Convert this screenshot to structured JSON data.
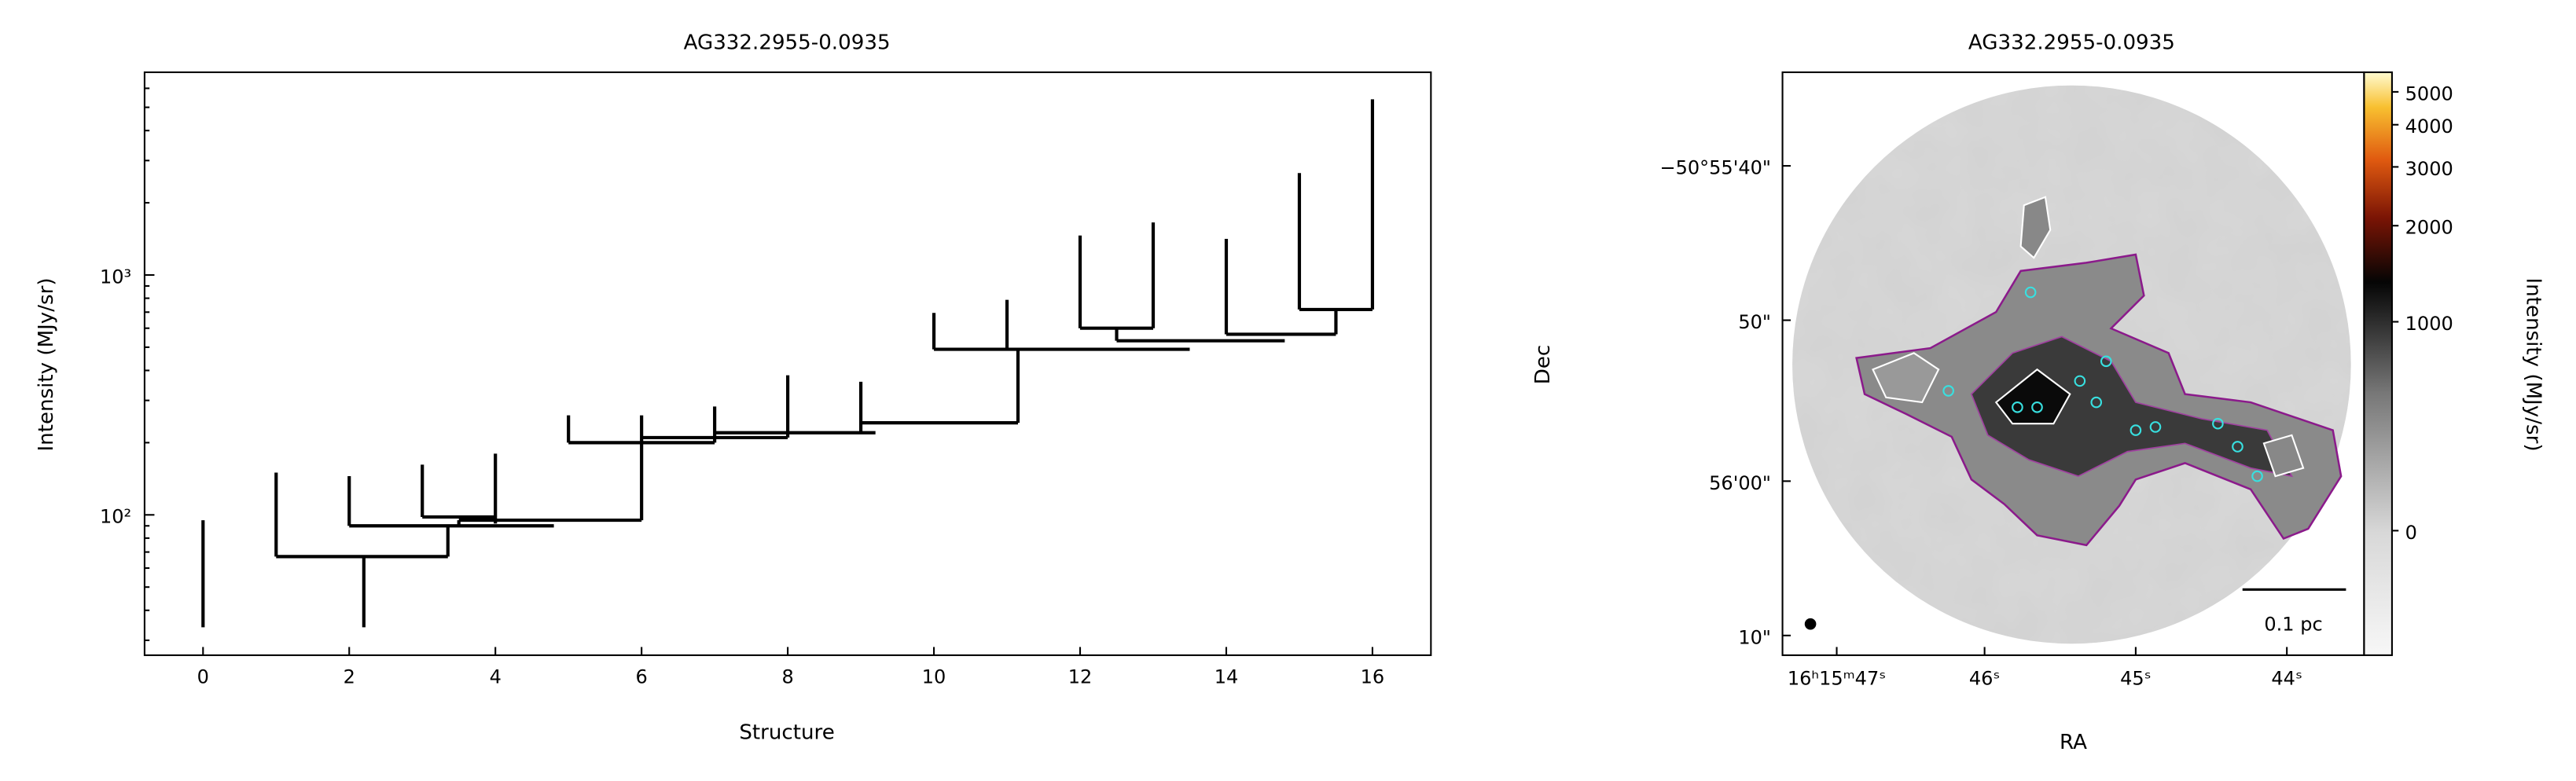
{
  "chart_data": [
    {
      "type": "dendrogram",
      "title": "AG332.2955-0.0935",
      "xlabel": "Structure",
      "ylabel": "Intensity (MJy/sr)",
      "xlim": [
        -0.8,
        16.8
      ],
      "xticks": [
        0,
        2,
        4,
        6,
        8,
        10,
        12,
        14,
        16
      ],
      "ylim": [
        26,
        7000
      ],
      "yscale": "log",
      "yticks": [
        {
          "value": 100,
          "label": "10²"
        },
        {
          "value": 1000,
          "label": "10³"
        }
      ],
      "color": "#000000",
      "segments": [
        {
          "x": [
            0,
            0
          ],
          "y": [
            34,
            95
          ]
        },
        {
          "x": [
            1,
            1
          ],
          "y": [
            67,
            150
          ]
        },
        {
          "x": [
            2.2,
            2.2
          ],
          "y": [
            34,
            67
          ]
        },
        {
          "x": [
            1,
            3.35
          ],
          "y": [
            67,
            67
          ]
        },
        {
          "x": [
            2,
            2
          ],
          "y": [
            90,
            145
          ]
        },
        {
          "x": [
            3.35,
            3.35
          ],
          "y": [
            67,
            90
          ]
        },
        {
          "x": [
            2,
            4.8
          ],
          "y": [
            90,
            90
          ]
        },
        {
          "x": [
            3,
            3
          ],
          "y": [
            98,
            162
          ]
        },
        {
          "x": [
            4,
            4
          ],
          "y": [
            92,
            180
          ]
        },
        {
          "x": [
            3,
            4
          ],
          "y": [
            98,
            98
          ]
        },
        {
          "x": [
            3.5,
            3.5
          ],
          "y": [
            90,
            95
          ]
        },
        {
          "x": [
            3.5,
            6
          ],
          "y": [
            95,
            95
          ]
        },
        {
          "x": [
            5,
            5
          ],
          "y": [
            200,
            260
          ]
        },
        {
          "x": [
            6,
            6
          ],
          "y": [
            95,
            260
          ]
        },
        {
          "x": [
            5,
            7
          ],
          "y": [
            200,
            200
          ]
        },
        {
          "x": [
            6,
            8
          ],
          "y": [
            210,
            210
          ]
        },
        {
          "x": [
            7,
            7
          ],
          "y": [
            200,
            283
          ]
        },
        {
          "x": [
            7,
            9.2
          ],
          "y": [
            220,
            220
          ]
        },
        {
          "x": [
            8,
            8
          ],
          "y": [
            210,
            382
          ]
        },
        {
          "x": [
            9,
            9
          ],
          "y": [
            220,
            359
          ]
        },
        {
          "x": [
            9,
            11.15
          ],
          "y": [
            242,
            242
          ]
        },
        {
          "x": [
            11.15,
            11.15
          ],
          "y": [
            242,
            492
          ]
        },
        {
          "x": [
            10,
            10
          ],
          "y": [
            490,
            695
          ]
        },
        {
          "x": [
            10,
            13.5
          ],
          "y": [
            490,
            490
          ]
        },
        {
          "x": [
            11,
            11
          ],
          "y": [
            490,
            788
          ]
        },
        {
          "x": [
            12,
            12
          ],
          "y": [
            600,
            1460
          ]
        },
        {
          "x": [
            12,
            13
          ],
          "y": [
            600,
            600
          ]
        },
        {
          "x": [
            13,
            13
          ],
          "y": [
            600,
            1655
          ]
        },
        {
          "x": [
            12.5,
            12.5
          ],
          "y": [
            532,
            600
          ]
        },
        {
          "x": [
            12.5,
            14.8
          ],
          "y": [
            532,
            532
          ]
        },
        {
          "x": [
            14,
            14
          ],
          "y": [
            566,
            1415
          ]
        },
        {
          "x": [
            14,
            15.5
          ],
          "y": [
            566,
            566
          ]
        },
        {
          "x": [
            15.5,
            15.5
          ],
          "y": [
            566,
            718
          ]
        },
        {
          "x": [
            15,
            16
          ],
          "y": [
            718,
            718
          ]
        },
        {
          "x": [
            15,
            15
          ],
          "y": [
            718,
            2660
          ]
        },
        {
          "x": [
            16,
            16
          ],
          "y": [
            718,
            5400
          ]
        }
      ]
    },
    {
      "type": "image",
      "title": "AG332.2955-0.0935",
      "xlabel": "RA",
      "ylabel": "Dec",
      "xticks": [
        "16ʰ15ᵐ47ˢ",
        "46ˢ",
        "45ˢ",
        "44ˢ"
      ],
      "yticks": [
        "−50°55'40\"",
        "50\"",
        "56'00\"",
        "10\""
      ],
      "scalebar": "0.1 pc",
      "colorbar": {
        "label": "Intensity (MJy/sr)",
        "stretch": "asinh",
        "lim": [
          -490,
          5710
        ],
        "ticks": [
          0,
          1000,
          2000,
          3000,
          4000,
          5000
        ]
      }
    }
  ]
}
